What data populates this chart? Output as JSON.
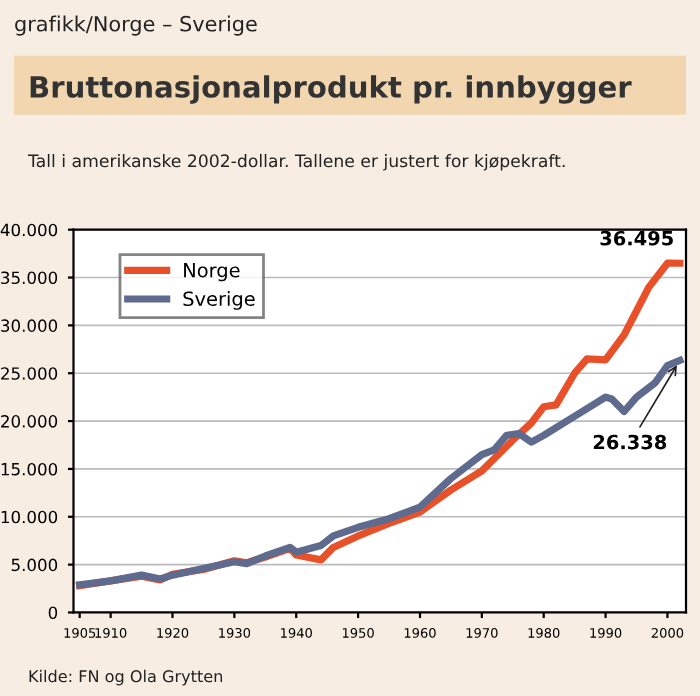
{
  "chart_data": {
    "type": "line",
    "title": "Bruttonasjonalprodukt pr. innbygger",
    "subtitle": "Tall i amerikanske 2002-dollar. Tallene er justert for kjøpekraft.",
    "annotations": [
      "grafikk/Norge – Sverige",
      "Kilde: FN og Ola Grytten",
      {
        "text": "36.495",
        "x": 2002,
        "y": 36495
      },
      {
        "text": "26.338",
        "x": 2002,
        "y": 26338
      }
    ],
    "series": [
      {
        "name": "Norge",
        "color": "#e8502a",
        "x": [
          1905,
          1910,
          1915,
          1918,
          1920,
          1925,
          1930,
          1932,
          1935,
          1939,
          1940,
          1944,
          1946,
          1950,
          1955,
          1960,
          1965,
          1970,
          1975,
          1978,
          1980,
          1982,
          1985,
          1987,
          1990,
          1993,
          1995,
          1997,
          2000,
          2002
        ],
        "values": [
          2800,
          3300,
          3800,
          3400,
          4000,
          4500,
          5400,
          5200,
          5800,
          6700,
          6000,
          5500,
          6800,
          8000,
          9300,
          10500,
          12800,
          14800,
          18000,
          19800,
          21500,
          21700,
          25000,
          26500,
          26400,
          29000,
          31500,
          34000,
          36500,
          36495
        ]
      },
      {
        "name": "Sverige",
        "color": "#5e6a8e",
        "x": [
          1905,
          1910,
          1915,
          1918,
          1920,
          1925,
          1930,
          1932,
          1935,
          1939,
          1940,
          1944,
          1946,
          1950,
          1955,
          1960,
          1965,
          1970,
          1972,
          1974,
          1976,
          1978,
          1980,
          1985,
          1990,
          1991,
          1993,
          1995,
          1998,
          2000,
          2002
        ],
        "values": [
          2900,
          3300,
          3900,
          3500,
          3900,
          4600,
          5300,
          5100,
          5900,
          6800,
          6300,
          7000,
          8000,
          8900,
          9800,
          11000,
          14000,
          16500,
          17000,
          18500,
          18700,
          17800,
          18500,
          20500,
          22500,
          22300,
          21000,
          22500,
          24000,
          25800,
          26338
        ]
      }
    ],
    "xlim": [
      1904,
      2003
    ],
    "xticks": [
      1905,
      1910,
      1920,
      1930,
      1940,
      1950,
      1960,
      1970,
      1980,
      1990,
      2000
    ],
    "ylim": [
      0,
      40000
    ],
    "yticks": [
      {
        "value": 0,
        "label": "0"
      },
      {
        "value": 5000,
        "label": "5.000"
      },
      {
        "value": 10000,
        "label": "10.000"
      },
      {
        "value": 15000,
        "label": "15.000"
      },
      {
        "value": 20000,
        "label": "20.000"
      },
      {
        "value": 25000,
        "label": "25.000"
      },
      {
        "value": 30000,
        "label": "30.000"
      },
      {
        "value": 35000,
        "label": "35.000"
      },
      {
        "value": 40000,
        "label": "40.000"
      }
    ],
    "grid": "y",
    "legend": "top left",
    "line_style": "solid"
  }
}
